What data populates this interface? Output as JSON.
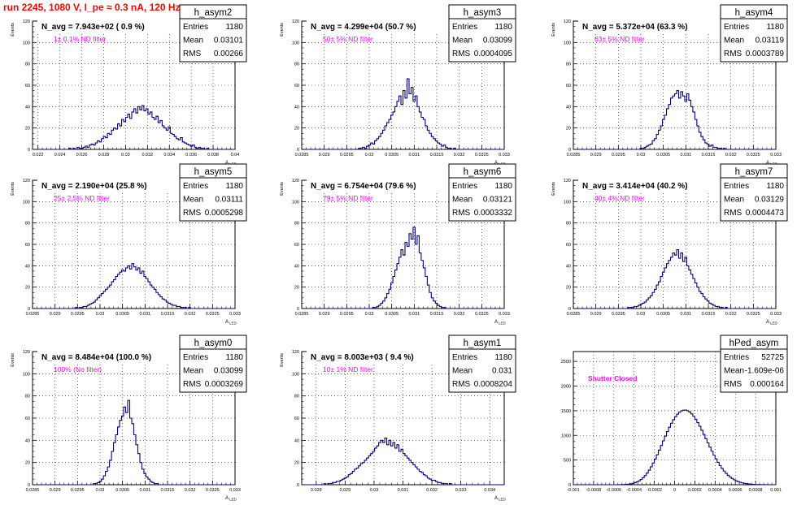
{
  "page": {
    "title": "run 2245,  1080 V, I_pe ≈ 0.3 nA, 120 Hz",
    "title_color": "#ff0000",
    "annotation_color": "#ff00ff",
    "line_color": "#000080"
  },
  "chart_data": [
    {
      "type": "histogram",
      "name": "h_asym2",
      "title": "N_avg = 7.943e+02 ( 0.9 %)",
      "annotation": "1± 0.1% ND filter",
      "ylabel": "Events",
      "xlabel": "A_LED",
      "stats": {
        "Entries": "1180",
        "Mean": "0.03101",
        "RMS": "0.00266"
      },
      "xlim": [
        0.0215,
        0.04
      ],
      "ylim": [
        0,
        120
      ],
      "xticks": [
        0.022,
        0.024,
        0.026,
        0.028,
        0.03,
        0.032,
        0.034,
        0.036,
        0.038,
        0.04
      ],
      "xtick_labels": [
        "0.022",
        "0.024",
        "0.026",
        "0.028",
        "0.03",
        "0.032",
        "0.034",
        "0.036",
        "0.038",
        "0.04"
      ],
      "yticks": [
        0,
        20,
        40,
        60,
        80,
        100,
        120
      ],
      "bin_start": 0.0215,
      "bin_width": 0.000185,
      "values": [
        0,
        0,
        0,
        0,
        0,
        0,
        0,
        0,
        0,
        0,
        0,
        0,
        0,
        0,
        0,
        0,
        0,
        0,
        1,
        0,
        1,
        0,
        2,
        1,
        1,
        2,
        3,
        2,
        4,
        5,
        4,
        6,
        8,
        7,
        10,
        12,
        11,
        15,
        14,
        18,
        20,
        19,
        24,
        22,
        28,
        26,
        30,
        33,
        29,
        35,
        38,
        34,
        40,
        37,
        41,
        36,
        38,
        33,
        35,
        30,
        28,
        31,
        25,
        27,
        22,
        20,
        18,
        21,
        15,
        14,
        12,
        10,
        9,
        11,
        7,
        6,
        5,
        4,
        3,
        4,
        2,
        1,
        2,
        1,
        1,
        0,
        1,
        0,
        0,
        0,
        0,
        0,
        0,
        0,
        0,
        0,
        0,
        0,
        0,
        0
      ]
    },
    {
      "type": "histogram",
      "name": "h_asym3",
      "title": "N_avg = 4.299e+04 (50.7 %)",
      "annotation": "50± 5% ND filter",
      "ylabel": "Events",
      "xlabel": "A_LED",
      "stats": {
        "Entries": "1180",
        "Mean": "0.03099",
        "RMS": "0.0004095"
      },
      "xlim": [
        0.0285,
        0.033
      ],
      "ylim": [
        0,
        120
      ],
      "xticks": [
        0.0285,
        0.029,
        0.0295,
        0.03,
        0.0305,
        0.031,
        0.0315,
        0.032,
        0.0325,
        0.033
      ],
      "xtick_labels": [
        "0.0285",
        "0.029",
        "0.0295",
        "0.03",
        "0.0305",
        "0.031",
        "0.0315",
        "0.032",
        "0.0325",
        "0.033"
      ],
      "yticks": [
        0,
        20,
        40,
        60,
        80,
        100,
        120
      ],
      "bin_start": 0.0285,
      "bin_width": 4.5e-05,
      "values": [
        0,
        0,
        0,
        0,
        0,
        0,
        0,
        0,
        0,
        0,
        0,
        0,
        0,
        0,
        0,
        0,
        0,
        0,
        0,
        0,
        0,
        0,
        0,
        0,
        0,
        0,
        0,
        0,
        1,
        1,
        2,
        1,
        3,
        4,
        6,
        5,
        8,
        10,
        12,
        15,
        18,
        22,
        25,
        28,
        32,
        35,
        40,
        45,
        50,
        42,
        55,
        48,
        66,
        52,
        58,
        45,
        50,
        40,
        35,
        30,
        28,
        22,
        18,
        15,
        12,
        10,
        8,
        6,
        5,
        3,
        4,
        2,
        1,
        1,
        0,
        1,
        0,
        0,
        0,
        0,
        0,
        0,
        0,
        0,
        0,
        0,
        0,
        0,
        0,
        0,
        0,
        0,
        0,
        0,
        0,
        0,
        0,
        0,
        0,
        0
      ]
    },
    {
      "type": "histogram",
      "name": "h_asym4",
      "title": "N_avg = 5.372e+04 (63.3 %)",
      "annotation": "63± 5% ND filter",
      "ylabel": "Events",
      "xlabel": "A_LED",
      "stats": {
        "Entries": "1180",
        "Mean": "0.03119",
        "RMS": "0.0003789"
      },
      "xlim": [
        0.0285,
        0.033
      ],
      "ylim": [
        0,
        120
      ],
      "xticks": [
        0.0285,
        0.029,
        0.0295,
        0.03,
        0.0305,
        0.031,
        0.0315,
        0.032,
        0.0325,
        0.033
      ],
      "xtick_labels": [
        "0.0285",
        "0.029",
        "0.0295",
        "0.03",
        "0.0305",
        "0.031",
        "0.0315",
        "0.032",
        "0.0325",
        "0.033"
      ],
      "yticks": [
        0,
        20,
        40,
        60,
        80,
        100,
        120
      ],
      "bin_start": 0.0285,
      "bin_width": 4.5e-05,
      "values": [
        0,
        0,
        0,
        0,
        0,
        0,
        0,
        0,
        0,
        0,
        0,
        0,
        0,
        0,
        0,
        0,
        0,
        0,
        0,
        0,
        0,
        0,
        0,
        0,
        0,
        0,
        0,
        0,
        0,
        0,
        0,
        0,
        0,
        1,
        1,
        2,
        3,
        4,
        5,
        8,
        10,
        14,
        18,
        22,
        28,
        32,
        38,
        42,
        48,
        50,
        52,
        55,
        48,
        54,
        50,
        45,
        52,
        46,
        40,
        35,
        28,
        22,
        16,
        12,
        9,
        6,
        5,
        3,
        4,
        2,
        2,
        1,
        1,
        0,
        1,
        0,
        0,
        0,
        0,
        0,
        0,
        0,
        0,
        0,
        0,
        0,
        0,
        0,
        0,
        0,
        0,
        0,
        0,
        0,
        0,
        0,
        0,
        0,
        0,
        0
      ]
    },
    {
      "type": "histogram",
      "name": "h_asym5",
      "title": "N_avg = 2.190e+04 (25.8 %)",
      "annotation": "25± 2.5% ND filter",
      "ylabel": "Events",
      "xlabel": "A_LED",
      "stats": {
        "Entries": "1180",
        "Mean": "0.03111",
        "RMS": "0.0005298"
      },
      "xlim": [
        0.0285,
        0.033
      ],
      "ylim": [
        0,
        120
      ],
      "xticks": [
        0.0285,
        0.029,
        0.0295,
        0.03,
        0.0305,
        0.031,
        0.0315,
        0.032,
        0.0325,
        0.033
      ],
      "xtick_labels": [
        "0.0285",
        "0.029",
        "0.0295",
        "0.03",
        "0.0305",
        "0.031",
        "0.0315",
        "0.032",
        "0.0325",
        "0.033"
      ],
      "yticks": [
        0,
        20,
        40,
        60,
        80,
        100,
        120
      ],
      "bin_start": 0.0285,
      "bin_width": 4.5e-05,
      "values": [
        0,
        0,
        0,
        0,
        0,
        0,
        0,
        0,
        0,
        0,
        0,
        0,
        0,
        0,
        0,
        0,
        0,
        0,
        0,
        0,
        0,
        1,
        0,
        1,
        1,
        2,
        2,
        3,
        4,
        5,
        6,
        8,
        10,
        12,
        14,
        16,
        18,
        20,
        22,
        25,
        27,
        30,
        32,
        34,
        36,
        35,
        38,
        40,
        37,
        42,
        39,
        36,
        38,
        33,
        35,
        30,
        28,
        25,
        22,
        20,
        18,
        15,
        13,
        11,
        9,
        8,
        6,
        5,
        4,
        3,
        3,
        2,
        2,
        1,
        1,
        1,
        0,
        1,
        0,
        0,
        0,
        0,
        0,
        0,
        0,
        0,
        0,
        0,
        0,
        0,
        0,
        0,
        0,
        0,
        0,
        0,
        0,
        0,
        0,
        0
      ]
    },
    {
      "type": "histogram",
      "name": "h_asym6",
      "title": "N_avg = 6.754e+04 (79.6 %)",
      "annotation": "79± 5% ND filter",
      "ylabel": "Events",
      "xlabel": "A_LED",
      "stats": {
        "Entries": "1180",
        "Mean": "0.03121",
        "RMS": "0.0003332"
      },
      "xlim": [
        0.0285,
        0.033
      ],
      "ylim": [
        0,
        120
      ],
      "xticks": [
        0.0285,
        0.029,
        0.0295,
        0.03,
        0.0305,
        0.031,
        0.0315,
        0.032,
        0.0325,
        0.033
      ],
      "xtick_labels": [
        "0.0285",
        "0.029",
        "0.0295",
        "0.03",
        "0.0305",
        "0.031",
        "0.0315",
        "0.032",
        "0.0325",
        "0.033"
      ],
      "yticks": [
        0,
        20,
        40,
        60,
        80,
        100,
        120
      ],
      "bin_start": 0.0285,
      "bin_width": 4.5e-05,
      "values": [
        0,
        0,
        0,
        0,
        0,
        0,
        0,
        0,
        0,
        0,
        0,
        0,
        0,
        0,
        0,
        0,
        0,
        0,
        0,
        0,
        0,
        0,
        0,
        0,
        0,
        0,
        0,
        0,
        0,
        0,
        0,
        0,
        0,
        0,
        0,
        1,
        1,
        2,
        3,
        5,
        7,
        10,
        14,
        18,
        24,
        30,
        36,
        42,
        48,
        55,
        50,
        62,
        58,
        70,
        65,
        76,
        60,
        68,
        52,
        45,
        38,
        30,
        22,
        15,
        10,
        7,
        5,
        3,
        2,
        1,
        1,
        0,
        0,
        0,
        0,
        0,
        0,
        0,
        0,
        0,
        0,
        0,
        0,
        0,
        0,
        0,
        0,
        0,
        0,
        0,
        0,
        0,
        0,
        0,
        0,
        0,
        0,
        0,
        0,
        0
      ]
    },
    {
      "type": "histogram",
      "name": "h_asym7",
      "title": "N_avg = 3.414e+04 (40.2 %)",
      "annotation": "40± 4% ND filter",
      "ylabel": "Events",
      "xlabel": "A_LED",
      "stats": {
        "Entries": "1180",
        "Mean": "0.03129",
        "RMS": "0.0004473"
      },
      "xlim": [
        0.0285,
        0.033
      ],
      "ylim": [
        0,
        120
      ],
      "xticks": [
        0.0285,
        0.029,
        0.0295,
        0.03,
        0.0305,
        0.031,
        0.0315,
        0.032,
        0.0325,
        0.033
      ],
      "xtick_labels": [
        "0.0285",
        "0.029",
        "0.0295",
        "0.03",
        "0.0305",
        "0.031",
        "0.0315",
        "0.032",
        "0.0325",
        "0.033"
      ],
      "yticks": [
        0,
        20,
        40,
        60,
        80,
        100,
        120
      ],
      "bin_start": 0.0285,
      "bin_width": 4.5e-05,
      "values": [
        0,
        0,
        0,
        0,
        0,
        0,
        0,
        0,
        0,
        0,
        0,
        0,
        0,
        0,
        0,
        0,
        0,
        0,
        0,
        0,
        0,
        0,
        0,
        0,
        0,
        0,
        0,
        1,
        1,
        1,
        2,
        2,
        3,
        4,
        5,
        6,
        8,
        10,
        12,
        15,
        18,
        22,
        25,
        30,
        34,
        38,
        42,
        45,
        48,
        52,
        50,
        55,
        47,
        52,
        44,
        48,
        40,
        36,
        32,
        28,
        24,
        20,
        16,
        14,
        11,
        9,
        7,
        5,
        4,
        3,
        2,
        2,
        1,
        1,
        0,
        1,
        0,
        0,
        0,
        0,
        0,
        0,
        0,
        0,
        0,
        0,
        0,
        0,
        0,
        0,
        0,
        0,
        0,
        0,
        0,
        0,
        0,
        0,
        0,
        0
      ]
    },
    {
      "type": "histogram",
      "name": "h_asym0",
      "title": "N_avg = 8.484e+04 (100.0 %)",
      "annotation": "100% (No filter)",
      "ylabel": "Events",
      "xlabel": "A_LED",
      "stats": {
        "Entries": "1180",
        "Mean": "0.03099",
        "RMS": "0.0003269"
      },
      "xlim": [
        0.0285,
        0.033
      ],
      "ylim": [
        0,
        120
      ],
      "xticks": [
        0.0285,
        0.029,
        0.0295,
        0.03,
        0.0305,
        0.031,
        0.0315,
        0.032,
        0.0325,
        0.033
      ],
      "xtick_labels": [
        "0.0285",
        "0.029",
        "0.0295",
        "0.03",
        "0.0305",
        "0.031",
        "0.0315",
        "0.032",
        "0.0325",
        "0.033"
      ],
      "yticks": [
        0,
        20,
        40,
        60,
        80,
        100,
        120
      ],
      "bin_start": 0.0285,
      "bin_width": 4.5e-05,
      "values": [
        0,
        0,
        0,
        0,
        0,
        0,
        0,
        0,
        0,
        0,
        0,
        0,
        0,
        0,
        0,
        0,
        0,
        0,
        0,
        0,
        0,
        0,
        0,
        0,
        0,
        0,
        0,
        0,
        0,
        0,
        1,
        1,
        2,
        3,
        5,
        8,
        12,
        16,
        22,
        30,
        38,
        45,
        52,
        58,
        62,
        70,
        65,
        76,
        60,
        55,
        45,
        36,
        28,
        20,
        14,
        10,
        7,
        5,
        3,
        2,
        1,
        1,
        0,
        0,
        0,
        0,
        0,
        0,
        0,
        0,
        0,
        0,
        0,
        0,
        0,
        0,
        0,
        0,
        0,
        0,
        0,
        0,
        0,
        0,
        0,
        0,
        0,
        0,
        0,
        0,
        0,
        0,
        0,
        0,
        0,
        0,
        0,
        0,
        0,
        0
      ]
    },
    {
      "type": "histogram",
      "name": "h_asym1",
      "title": "N_avg = 8.003e+03 ( 9.4 %)",
      "annotation": "10± 1% ND filter",
      "ylabel": "Events",
      "xlabel": "A_LED",
      "stats": {
        "Entries": "1180",
        "Mean": "0.031",
        "RMS": "0.0008204"
      },
      "xlim": [
        0.0275,
        0.0345
      ],
      "ylim": [
        0,
        120
      ],
      "xticks": [
        0.028,
        0.029,
        0.03,
        0.031,
        0.032,
        0.033,
        0.034
      ],
      "xtick_labels": [
        "0.028",
        "0.029",
        "0.03",
        "0.031",
        "0.032",
        "0.033",
        "0.034"
      ],
      "yticks": [
        0,
        20,
        40,
        60,
        80,
        100,
        120
      ],
      "bin_start": 0.0275,
      "bin_width": 7e-05,
      "values": [
        0,
        0,
        0,
        0,
        0,
        0,
        0,
        0,
        0,
        0,
        0,
        1,
        0,
        1,
        1,
        2,
        2,
        3,
        3,
        4,
        5,
        6,
        7,
        9,
        10,
        12,
        14,
        15,
        17,
        19,
        20,
        22,
        24,
        26,
        28,
        30,
        33,
        35,
        38,
        40,
        38,
        42,
        36,
        40,
        35,
        38,
        33,
        36,
        30,
        32,
        28,
        26,
        24,
        22,
        20,
        18,
        16,
        14,
        12,
        11,
        9,
        8,
        6,
        5,
        4,
        4,
        3,
        2,
        2,
        1,
        1,
        1,
        0,
        1,
        0,
        0,
        0,
        0,
        0,
        0,
        0,
        0,
        0,
        0,
        0,
        0,
        0,
        0,
        0,
        0,
        0,
        0,
        0,
        0,
        0,
        0,
        0,
        0,
        0,
        0
      ]
    },
    {
      "type": "histogram",
      "name": "hPed_asym",
      "title": "",
      "annotation": "Shutter Closed",
      "ylabel": "",
      "xlabel": "",
      "stats": {
        "Entries": "52725",
        "Mean": "-1.609e-06",
        "RMS": "0.000164"
      },
      "xlim": [
        -0.001,
        0.001
      ],
      "ylim": [
        0,
        2700
      ],
      "xticks": [
        -0.001,
        -0.0008,
        -0.0006,
        -0.0004,
        -0.0002,
        0,
        0.0002,
        0.0004,
        0.0006,
        0.0008,
        0.001
      ],
      "xtick_labels": [
        "-0.001",
        "-0.0008",
        "-0.0006",
        "-0.0004",
        "-0.0002",
        "0",
        "0.0002",
        "0.0004",
        "0.0006",
        "0.0008",
        "0.001"
      ],
      "yticks": [
        0,
        500,
        1000,
        1500,
        2000,
        2500
      ],
      "bin_start": -0.001,
      "bin_width": 2e-05,
      "values": [
        0,
        0,
        0,
        0,
        0,
        0,
        0,
        0,
        0,
        0,
        0,
        0,
        0,
        0,
        0,
        0,
        0,
        0,
        0,
        0,
        0,
        0,
        1,
        2,
        3,
        5,
        8,
        12,
        18,
        27,
        39,
        56,
        78,
        106,
        141,
        184,
        236,
        296,
        364,
        439,
        521,
        608,
        700,
        795,
        890,
        985,
        1078,
        1165,
        1246,
        1318,
        1380,
        1432,
        1471,
        1498,
        1512,
        1513,
        1500,
        1474,
        1436,
        1387,
        1327,
        1259,
        1184,
        1104,
        1020,
        934,
        848,
        763,
        679,
        599,
        523,
        453,
        389,
        330,
        278,
        232,
        191,
        156,
        126,
        101,
        80,
        62,
        48,
        37,
        28,
        21,
        16,
        12,
        8,
        6,
        4,
        3,
        2,
        1,
        1,
        0,
        0,
        0,
        0,
        0
      ]
    }
  ]
}
